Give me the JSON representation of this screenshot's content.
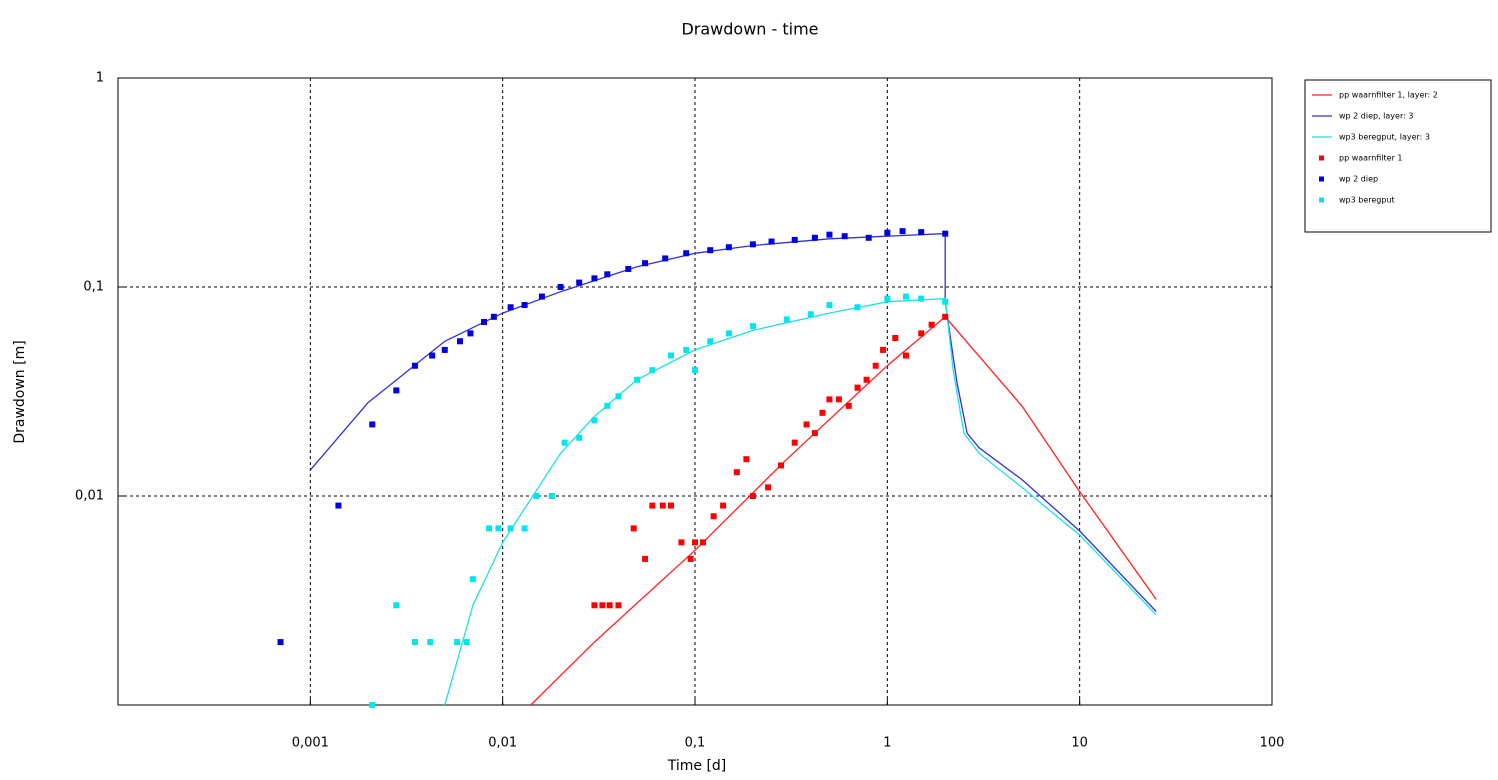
{
  "chart_data": {
    "type": "line",
    "title": "Drawdown - time",
    "xlabel": "Time [d]",
    "ylabel": "Drawdown [m]",
    "xscale": "log",
    "yscale": "log",
    "xlim": [
      0.0001,
      100
    ],
    "ylim": [
      0.001,
      1
    ],
    "xticks": [
      {
        "value": 0.001,
        "label": "0,001"
      },
      {
        "value": 0.01,
        "label": "0,01"
      },
      {
        "value": 0.1,
        "label": "0,1"
      },
      1,
      10,
      100
    ],
    "yticks": [
      {
        "value": 0.01,
        "label": "0,01"
      },
      {
        "value": 0.1,
        "label": "0,1"
      },
      1
    ],
    "grid": true,
    "legend": "outside-right",
    "series": [
      {
        "name": "pp waarnfilter 1, layer: 2",
        "type": "line",
        "color": "#ff2020",
        "x": [
          0.014,
          0.03,
          0.1,
          0.3,
          1,
          2,
          5,
          10,
          25
        ],
        "values": [
          0.001,
          0.002,
          0.0055,
          0.015,
          0.042,
          0.072,
          0.027,
          0.0105,
          0.0032
        ]
      },
      {
        "name": "wp 2 diep, layer: 3",
        "type": "line",
        "color": "#3030e0",
        "x": [
          0.001,
          0.002,
          0.005,
          0.01,
          0.02,
          0.05,
          0.1,
          0.2,
          0.5,
          1,
          2,
          2.0,
          2.3,
          2.6,
          3,
          5,
          10,
          25
        ],
        "values": [
          0.0133,
          0.028,
          0.055,
          0.075,
          0.095,
          0.125,
          0.145,
          0.158,
          0.17,
          0.175,
          0.18,
          0.085,
          0.035,
          0.02,
          0.017,
          0.012,
          0.0068,
          0.0028
        ]
      },
      {
        "name": "wp3 beregput, layer: 3",
        "type": "line",
        "color": "#20e0e0",
        "x": [
          0.005,
          0.007,
          0.01,
          0.02,
          0.03,
          0.05,
          0.1,
          0.2,
          0.5,
          1,
          2,
          2.2,
          2.5,
          3,
          5,
          10,
          25
        ],
        "values": [
          0.001,
          0.003,
          0.006,
          0.016,
          0.024,
          0.036,
          0.05,
          0.062,
          0.075,
          0.085,
          0.088,
          0.04,
          0.02,
          0.016,
          0.011,
          0.0065,
          0.0027
        ]
      },
      {
        "name": "pp waarnfilter 1",
        "type": "scatter",
        "color": "#ff0000",
        "x": [
          0.03,
          0.033,
          0.036,
          0.04,
          0.048,
          0.055,
          0.06,
          0.068,
          0.075,
          0.085,
          0.095,
          0.1,
          0.11,
          0.125,
          0.14,
          0.165,
          0.185,
          0.2,
          0.24,
          0.28,
          0.33,
          0.38,
          0.42,
          0.46,
          0.5,
          0.56,
          0.63,
          0.7,
          0.78,
          0.87,
          0.95,
          1.1,
          1.25,
          1.5,
          1.7,
          2
        ],
        "values": [
          0.003,
          0.003,
          0.003,
          0.003,
          0.007,
          0.005,
          0.009,
          0.009,
          0.009,
          0.006,
          0.005,
          0.006,
          0.006,
          0.008,
          0.009,
          0.013,
          0.015,
          0.01,
          0.011,
          0.014,
          0.018,
          0.022,
          0.02,
          0.025,
          0.029,
          0.029,
          0.027,
          0.033,
          0.036,
          0.042,
          0.05,
          0.057,
          0.047,
          0.06,
          0.066,
          0.072
        ]
      },
      {
        "name": "wp 2 diep",
        "type": "scatter",
        "color": "#0000e0",
        "x": [
          0.0007,
          0.0014,
          0.0021,
          0.0028,
          0.0035,
          0.0043,
          0.005,
          0.006,
          0.0068,
          0.008,
          0.009,
          0.011,
          0.013,
          0.016,
          0.02,
          0.025,
          0.03,
          0.035,
          0.045,
          0.055,
          0.07,
          0.09,
          0.12,
          0.15,
          0.2,
          0.25,
          0.33,
          0.42,
          0.5,
          0.6,
          0.8,
          1,
          1.2,
          1.5,
          2
        ],
        "values": [
          0.002,
          0.009,
          0.022,
          0.032,
          0.042,
          0.047,
          0.05,
          0.055,
          0.06,
          0.068,
          0.072,
          0.08,
          0.082,
          0.09,
          0.1,
          0.105,
          0.11,
          0.115,
          0.122,
          0.13,
          0.137,
          0.145,
          0.15,
          0.155,
          0.16,
          0.165,
          0.168,
          0.172,
          0.178,
          0.175,
          0.172,
          0.182,
          0.185,
          0.183,
          0.18
        ]
      },
      {
        "name": "wp3 beregput",
        "type": "scatter",
        "color": "#00e5ee",
        "x": [
          0.0021,
          0.0028,
          0.0035,
          0.0042,
          0.0058,
          0.0065,
          0.007,
          0.0085,
          0.0095,
          0.011,
          0.013,
          0.015,
          0.018,
          0.021,
          0.025,
          0.03,
          0.035,
          0.04,
          0.05,
          0.06,
          0.075,
          0.09,
          0.1,
          0.12,
          0.15,
          0.2,
          0.3,
          0.4,
          0.5,
          0.7,
          1,
          1.25,
          1.5,
          2
        ],
        "values": [
          0.001,
          0.003,
          0.002,
          0.002,
          0.002,
          0.002,
          0.004,
          0.007,
          0.007,
          0.007,
          0.007,
          0.01,
          0.01,
          0.018,
          0.019,
          0.023,
          0.027,
          0.03,
          0.036,
          0.04,
          0.047,
          0.05,
          0.04,
          0.055,
          0.06,
          0.065,
          0.07,
          0.074,
          0.082,
          0.08,
          0.088,
          0.09,
          0.088,
          0.085
        ]
      }
    ]
  }
}
